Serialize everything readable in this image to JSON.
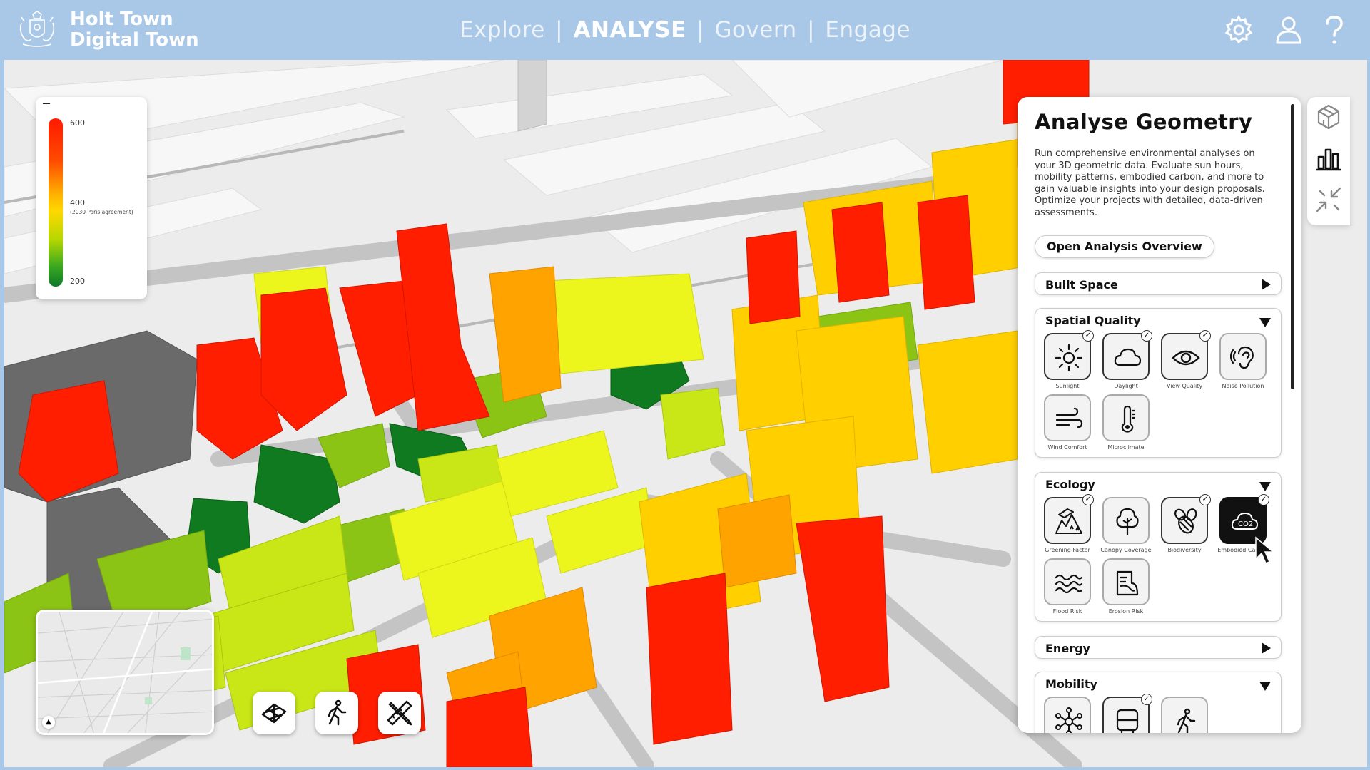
{
  "header": {
    "brand_line1": "Holt Town",
    "brand_line2": "Digital Town",
    "nav": [
      {
        "label": "Explore",
        "active": false
      },
      {
        "label": "ANALYSE",
        "active": true
      },
      {
        "label": "Govern",
        "active": false
      },
      {
        "label": "Engage",
        "active": false
      }
    ],
    "nav_separator": "|",
    "icons": [
      "gear-icon",
      "user-icon",
      "help-icon"
    ]
  },
  "legend": {
    "top": "600",
    "mid": "400",
    "mid_note": "(2030 Paris agreement)",
    "bottom": "200"
  },
  "tools": [
    "grid-plane-icon",
    "walking-person-icon",
    "ruler-pencil-icon"
  ],
  "side_tabs": [
    "3d-cube-icon",
    "bar-chart-icon",
    "compress-arrows-icon"
  ],
  "panel": {
    "title": "Analyse Geometry",
    "description": "Run comprehensive environmental analyses on your 3D geometric data. Evaluate sun hours, mobility patterns, embodied carbon, and more to gain valuable insights into your design proposals. Optimize your projects with detailed, data-driven assessments.",
    "overview_button": "Open Analysis Overview",
    "sections": {
      "built_space": {
        "title": "Built Space",
        "expanded": false
      },
      "spatial_quality": {
        "title": "Spatial Quality",
        "expanded": true,
        "items": [
          "Sunlight",
          "Daylight",
          "View Quality",
          "Noise Pollution",
          "Wind Comfort",
          "Microclimate"
        ]
      },
      "ecology": {
        "title": "Ecology",
        "expanded": true,
        "items": [
          "Greening Factor",
          "Canopy Coverage",
          "Biodiversity",
          "Embodied Carbon",
          "Flood Risk",
          "Erosion Risk"
        ]
      },
      "energy": {
        "title": "Energy",
        "expanded": false
      },
      "mobility": {
        "title": "Mobility",
        "expanded": true
      }
    }
  },
  "colors": {
    "header_bg": "#a9c8e8",
    "high": "#ff1a00",
    "mid": "#ffd000",
    "low": "#0d7a2a",
    "neutral_building": "#6c6c6c"
  }
}
